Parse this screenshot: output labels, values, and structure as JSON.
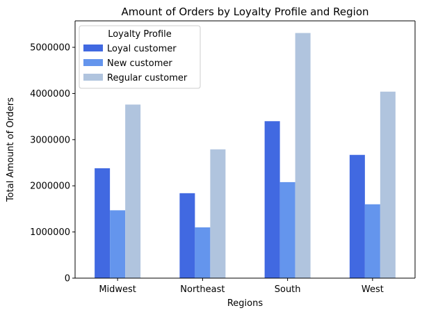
{
  "chart_data": {
    "type": "bar",
    "title": "Amount of Orders by Loyalty Profile and Region",
    "xlabel": "Regions",
    "ylabel": "Total Amount of Orders",
    "categories": [
      "Midwest",
      "Northeast",
      "South",
      "West"
    ],
    "series": [
      {
        "name": "Loyal customer",
        "color": "#4169e1",
        "values": [
          2380000,
          1840000,
          3400000,
          2670000
        ]
      },
      {
        "name": "New customer",
        "color": "#6495ed",
        "values": [
          1470000,
          1100000,
          2080000,
          1600000
        ]
      },
      {
        "name": "Regular customer",
        "color": "#b0c4de",
        "values": [
          3760000,
          2790000,
          5310000,
          4040000
        ]
      }
    ],
    "ylim": [
      0,
      5573000
    ],
    "yticks": [
      "0",
      "1000000",
      "2000000",
      "3000000",
      "4000000",
      "5000000"
    ],
    "ytick_values": [
      0,
      1000000,
      2000000,
      3000000,
      4000000,
      5000000
    ],
    "legend": {
      "title": "Loyalty Profile",
      "placement": "top-left"
    },
    "grid": false
  }
}
